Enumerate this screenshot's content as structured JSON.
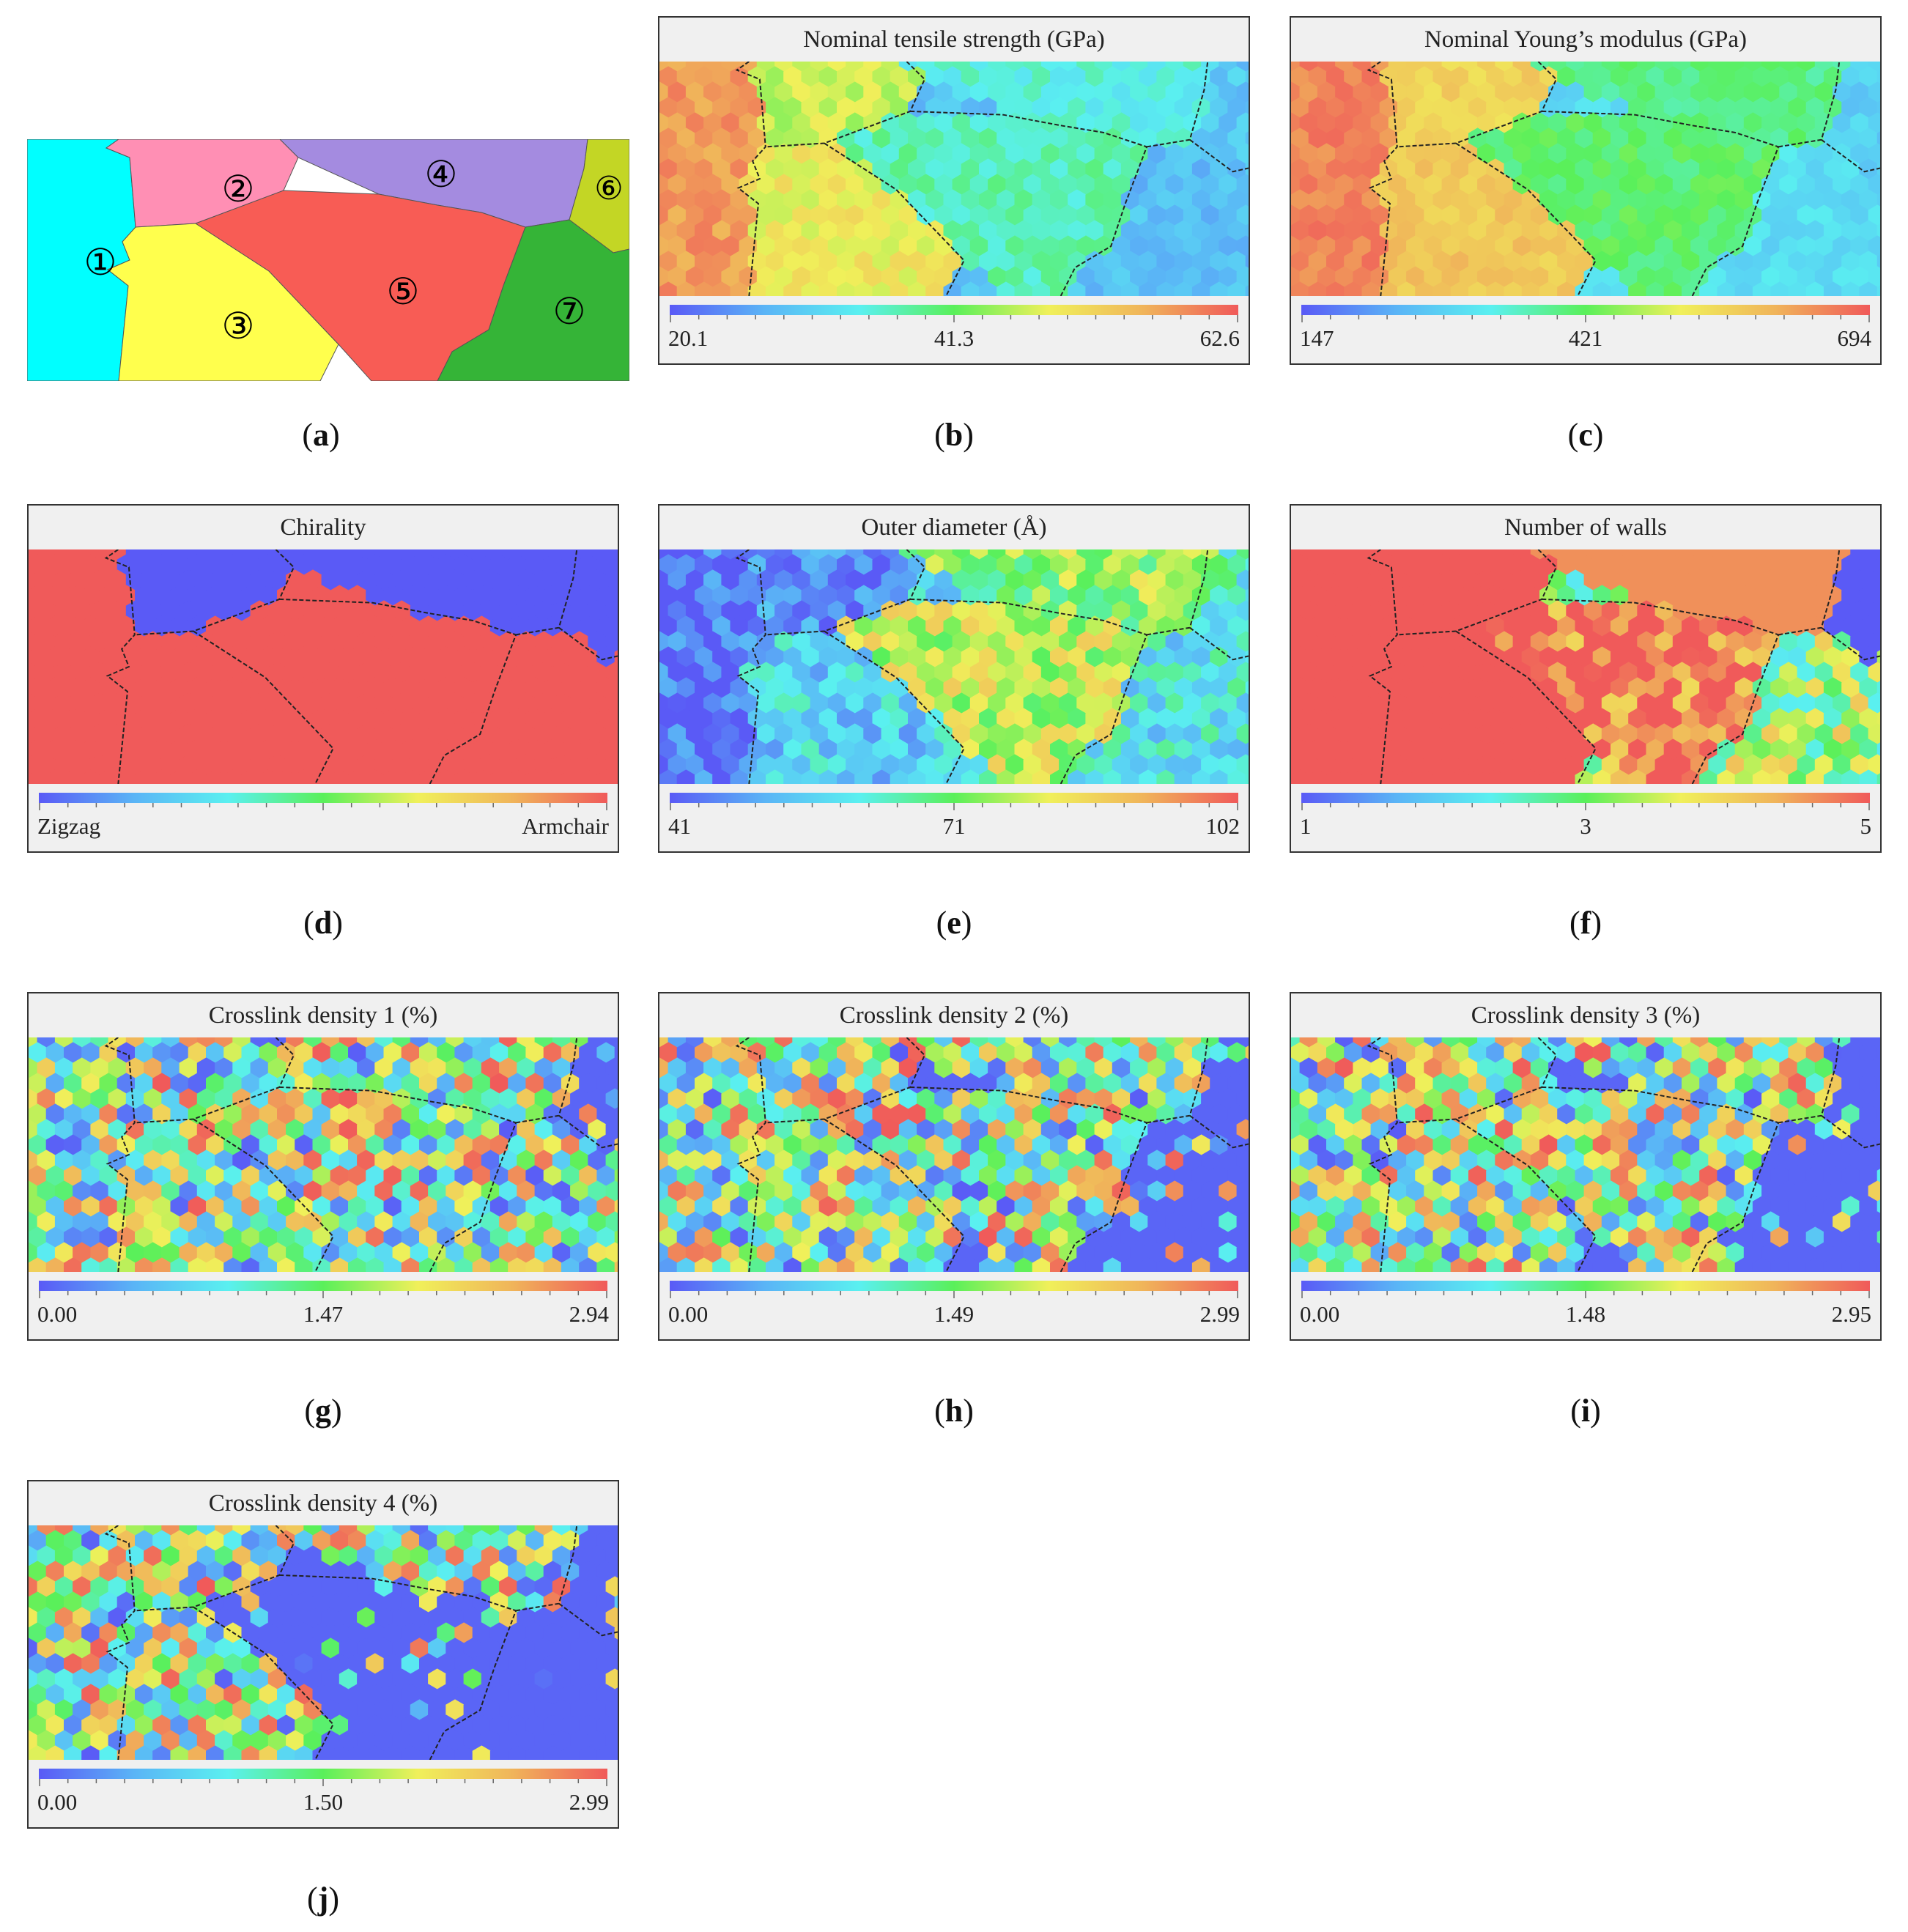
{
  "panel_a": {
    "caption_open": "(",
    "caption_letter": "a",
    "caption_close": ")",
    "grains": [
      {
        "label": "①",
        "color": "#00ffff"
      },
      {
        "label": "②",
        "color": "#ff8fb4"
      },
      {
        "label": "③",
        "color": "#ffff4d"
      },
      {
        "label": "④",
        "color": "#a48be0"
      },
      {
        "label": "⑤",
        "color": "#f85c55"
      },
      {
        "label": "⑥",
        "color": "#c3d625"
      },
      {
        "label": "⑦",
        "color": "#35b437"
      }
    ]
  },
  "panels": [
    {
      "letter": "b",
      "title": "Nominal tensile strength (GPa)",
      "min_label": "20.1",
      "mid_label": "41.3",
      "max_label": "62.6",
      "kind": "strength"
    },
    {
      "letter": "c",
      "title": "Nominal Young’s modulus (GPa)",
      "min_label": "147",
      "mid_label": "421",
      "max_label": "694",
      "kind": "modulus"
    },
    {
      "letter": "d",
      "title": "Chirality",
      "min_label": "Zigzag",
      "mid_label": "",
      "max_label": "Armchair",
      "kind": "chirality"
    },
    {
      "letter": "e",
      "title": "Outer diameter (Å)",
      "min_label": "41",
      "mid_label": "71",
      "max_label": "102",
      "kind": "diameter"
    },
    {
      "letter": "f",
      "title": "Number of walls",
      "min_label": "1",
      "mid_label": "3",
      "max_label": "5",
      "kind": "walls"
    },
    {
      "letter": "g",
      "title": "Crosslink density 1 (%)",
      "min_label": "0.00",
      "mid_label": "1.47",
      "max_label": "2.94",
      "kind": "cross1"
    },
    {
      "letter": "h",
      "title": "Crosslink density 2 (%)",
      "min_label": "0.00",
      "mid_label": "1.49",
      "max_label": "2.99",
      "kind": "cross2"
    },
    {
      "letter": "i",
      "title": "Crosslink density 3 (%)",
      "min_label": "0.00",
      "mid_label": "1.48",
      "max_label": "2.95",
      "kind": "cross3"
    },
    {
      "letter": "j",
      "title": "Crosslink density 4 (%)",
      "min_label": "0.00",
      "mid_label": "1.50",
      "max_label": "2.99",
      "kind": "cross4"
    }
  ],
  "colormap": [
    "#5a5af6",
    "#5ab4f6",
    "#5af0f0",
    "#5af05a",
    "#f0f05a",
    "#f0b45a",
    "#f05a5a"
  ],
  "chart_data": [
    {
      "type": "heatmap",
      "title": "Nominal tensile strength (GPa)",
      "range": [
        20.1,
        62.6
      ],
      "grain_values": {
        "1": 58,
        "2": 48,
        "3": 50,
        "4": 33,
        "5": 36,
        "6": 26,
        "7": 24
      }
    },
    {
      "type": "heatmap",
      "title": "Nominal Young’s modulus (GPa)",
      "range": [
        147,
        694
      ],
      "grain_values": {
        "1": 640,
        "2": 520,
        "3": 560,
        "4": 360,
        "5": 400,
        "6": 260,
        "7": 250
      }
    },
    {
      "type": "heatmap",
      "title": "Chirality",
      "categories": [
        "Zigzag",
        "Armchair"
      ],
      "grain_values": {
        "1": "Armchair",
        "2": "Zigzag",
        "3": "Armchair",
        "4": "Zigzag",
        "5": "Armchair",
        "6": "Zigzag",
        "7": "Armchair"
      }
    },
    {
      "type": "heatmap",
      "title": "Outer diameter (Å)",
      "range": [
        41,
        102
      ],
      "grain_values": {
        "1": 43,
        "2": 50,
        "3": 58,
        "4": 75,
        "5": 82,
        "6": 60,
        "7": 55
      }
    },
    {
      "type": "heatmap",
      "title": "Number of walls",
      "range": [
        1,
        5
      ],
      "grain_values": {
        "1": 5,
        "2": 5,
        "3": 5,
        "4": 4.5,
        "5": 4.6,
        "6": 1,
        "7": 2.6
      }
    },
    {
      "type": "heatmap",
      "title": "Crosslink density 1 (%)",
      "range": [
        0.0,
        2.94
      ]
    },
    {
      "type": "heatmap",
      "title": "Crosslink density 2 (%)",
      "range": [
        0.0,
        2.99
      ]
    },
    {
      "type": "heatmap",
      "title": "Crosslink density 3 (%)",
      "range": [
        0.0,
        2.95
      ]
    },
    {
      "type": "heatmap",
      "title": "Crosslink density 4 (%)",
      "range": [
        0.0,
        2.99
      ]
    }
  ]
}
